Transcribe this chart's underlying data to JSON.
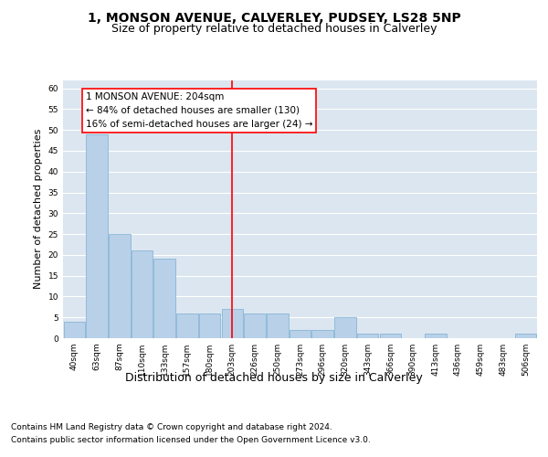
{
  "title": "1, MONSON AVENUE, CALVERLEY, PUDSEY, LS28 5NP",
  "subtitle": "Size of property relative to detached houses in Calverley",
  "xlabel_bottom": "Distribution of detached houses by size in Calverley",
  "ylabel": "Number of detached properties",
  "categories": [
    "40sqm",
    "63sqm",
    "87sqm",
    "110sqm",
    "133sqm",
    "157sqm",
    "180sqm",
    "203sqm",
    "226sqm",
    "250sqm",
    "273sqm",
    "296sqm",
    "320sqm",
    "343sqm",
    "366sqm",
    "390sqm",
    "413sqm",
    "436sqm",
    "459sqm",
    "483sqm",
    "506sqm"
  ],
  "values": [
    4,
    49,
    25,
    21,
    19,
    6,
    6,
    7,
    6,
    6,
    2,
    2,
    5,
    1,
    1,
    0,
    1,
    0,
    0,
    0,
    1
  ],
  "bar_color": "#b8d0e8",
  "bar_edge_color": "#7aafd4",
  "vline_x_index": 7,
  "vline_color": "red",
  "annotation_text": "1 MONSON AVENUE: 204sqm\n← 84% of detached houses are smaller (130)\n16% of semi-detached houses are larger (24) →",
  "annotation_box_color": "white",
  "annotation_box_edge_color": "red",
  "ylim": [
    0,
    62
  ],
  "yticks": [
    0,
    5,
    10,
    15,
    20,
    25,
    30,
    35,
    40,
    45,
    50,
    55,
    60
  ],
  "background_color": "#dce6f0",
  "grid_color": "white",
  "footer_line1": "Contains HM Land Registry data © Crown copyright and database right 2024.",
  "footer_line2": "Contains public sector information licensed under the Open Government Licence v3.0.",
  "title_fontsize": 10,
  "subtitle_fontsize": 9,
  "ylabel_fontsize": 8,
  "tick_fontsize": 6.5,
  "annotation_fontsize": 7.5,
  "footer_fontsize": 6.5
}
